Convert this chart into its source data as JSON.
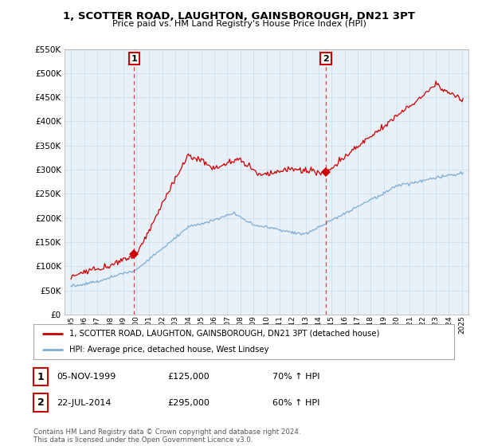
{
  "title": "1, SCOTTER ROAD, LAUGHTON, GAINSBOROUGH, DN21 3PT",
  "subtitle": "Price paid vs. HM Land Registry's House Price Index (HPI)",
  "legend_line1": "1, SCOTTER ROAD, LAUGHTON, GAINSBOROUGH, DN21 3PT (detached house)",
  "legend_line2": "HPI: Average price, detached house, West Lindsey",
  "table_rows": [
    {
      "num": "1",
      "date": "05-NOV-1999",
      "price": "£125,000",
      "change": "70% ↑ HPI"
    },
    {
      "num": "2",
      "date": "22-JUL-2014",
      "price": "£295,000",
      "change": "60% ↑ HPI"
    }
  ],
  "footer": "Contains HM Land Registry data © Crown copyright and database right 2024.\nThis data is licensed under the Open Government Licence v3.0.",
  "sale1_year": 1999.84,
  "sale1_price": 125000,
  "sale2_year": 2014.55,
  "sale2_price": 295000,
  "ylim": [
    0,
    550000
  ],
  "xlim": [
    1994.5,
    2025.5
  ],
  "yticks": [
    0,
    50000,
    100000,
    150000,
    200000,
    250000,
    300000,
    350000,
    400000,
    450000,
    500000,
    550000
  ],
  "property_color": "#cc0000",
  "hpi_color": "#7eadd4",
  "vline_color": "#cc0000",
  "grid_color": "#ccddee",
  "bg_color": "#ffffff",
  "plot_bg_color": "#e8f0f8",
  "marker_color": "#cc0000"
}
